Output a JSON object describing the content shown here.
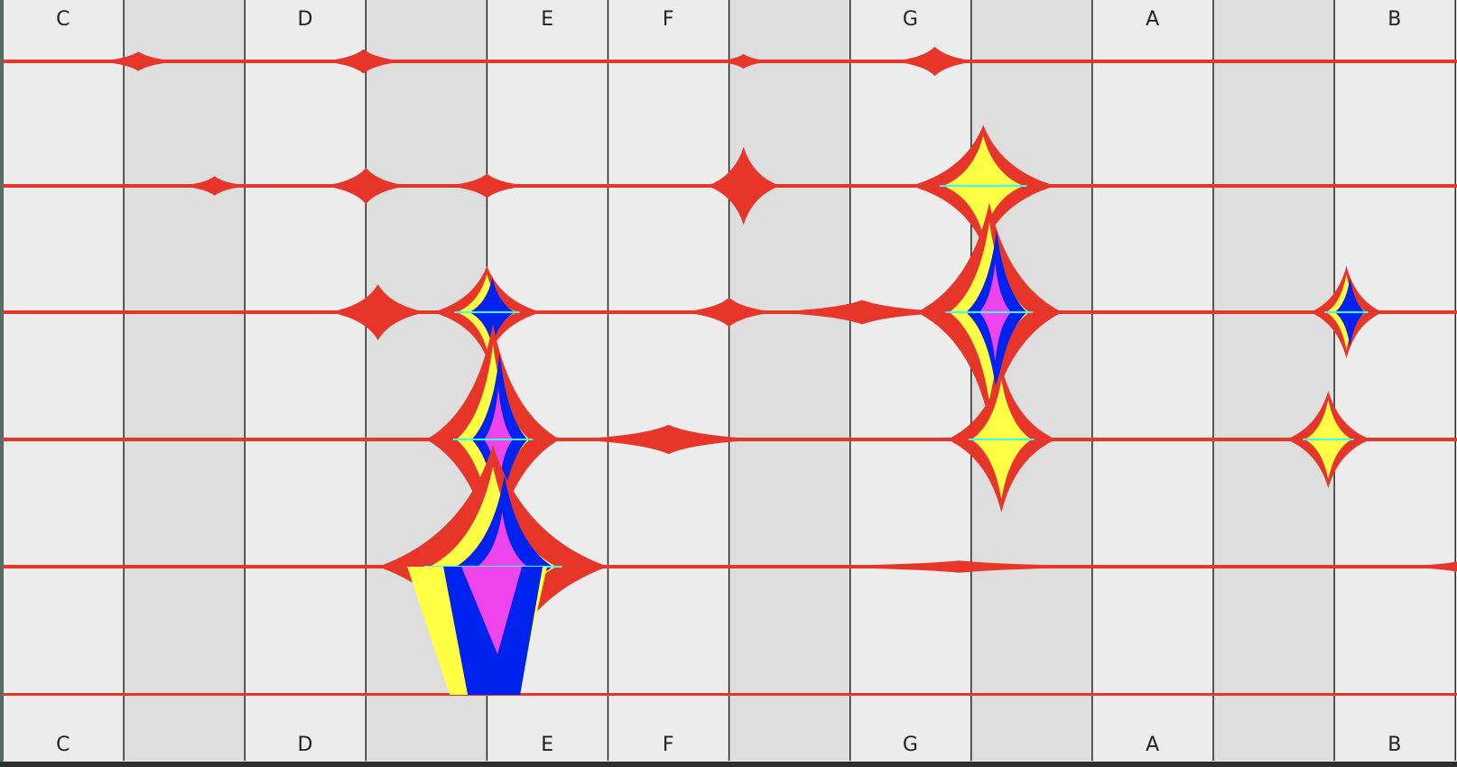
{
  "note_labels_top": [
    {
      "name": "C",
      "key": 0
    },
    {
      "name": "D",
      "key": 2
    },
    {
      "name": "E",
      "key": 4
    },
    {
      "name": "F",
      "key": 5
    },
    {
      "name": "G",
      "key": 7
    },
    {
      "name": "A",
      "key": 9
    },
    {
      "name": "B",
      "key": 11
    }
  ],
  "note_labels_bottom": [
    {
      "name": "C",
      "key": 0
    },
    {
      "name": "D",
      "key": 2
    },
    {
      "name": "E",
      "key": 4
    },
    {
      "name": "F",
      "key": 5
    },
    {
      "name": "G",
      "key": 7
    },
    {
      "name": "A",
      "key": 9
    },
    {
      "name": "B",
      "key": 11
    }
  ],
  "keys": [
    {
      "index": 0,
      "type": "white"
    },
    {
      "index": 1,
      "type": "black"
    },
    {
      "index": 2,
      "type": "white"
    },
    {
      "index": 3,
      "type": "black"
    },
    {
      "index": 4,
      "type": "white"
    },
    {
      "index": 5,
      "type": "white"
    },
    {
      "index": 6,
      "type": "black"
    },
    {
      "index": 7,
      "type": "white"
    },
    {
      "index": 8,
      "type": "black"
    },
    {
      "index": 9,
      "type": "white"
    },
    {
      "index": 10,
      "type": "black"
    },
    {
      "index": 11,
      "type": "white"
    }
  ],
  "octave_rows": 5,
  "colors": {
    "background": "#ececec",
    "black_key_column": "#dedede",
    "grid_line": "#1a1a1a",
    "baseline": "#e8352a",
    "level_1": "#e8352a",
    "level_2": "#ffff44",
    "level_3": "#0022ee",
    "level_4": "#ee44ee",
    "accent_cyan": "#33ffff",
    "accent_green": "#88ff44"
  },
  "peaks": [
    {
      "row": 0,
      "pos": 0.62,
      "level": 1,
      "amp": 0.08,
      "spread": 0.35
    },
    {
      "row": 0,
      "pos": 2.48,
      "level": 1,
      "amp": 0.1,
      "spread": 0.35
    },
    {
      "row": 0,
      "pos": 5.62,
      "level": 1,
      "amp": 0.06,
      "spread": 0.25
    },
    {
      "row": 0,
      "pos": 7.2,
      "level": 1,
      "amp": 0.12,
      "spread": 0.35
    },
    {
      "row": 1,
      "pos": 1.25,
      "level": 1,
      "amp": 0.08,
      "spread": 0.3
    },
    {
      "row": 1,
      "pos": 2.5,
      "level": 1,
      "amp": 0.15,
      "spread": 0.35
    },
    {
      "row": 1,
      "pos": 3.5,
      "level": 1,
      "amp": 0.1,
      "spread": 0.35
    },
    {
      "row": 1,
      "pos": 5.62,
      "level": 1,
      "amp": 0.32,
      "spread": 0.3
    },
    {
      "row": 1,
      "pos": 7.6,
      "level": 2,
      "amp": 0.5,
      "spread": 0.6
    },
    {
      "row": 2,
      "pos": 2.6,
      "level": 1,
      "amp": 0.23,
      "spread": 0.4
    },
    {
      "row": 2,
      "pos": 3.5,
      "level": 3,
      "amp": 0.38,
      "spread": 0.45
    },
    {
      "row": 2,
      "pos": 5.5,
      "level": 1,
      "amp": 0.12,
      "spread": 0.4
    },
    {
      "row": 2,
      "pos": 6.6,
      "level": 1,
      "amp": 0.1,
      "spread": 0.8
    },
    {
      "row": 2,
      "pos": 7.65,
      "level": 4,
      "amp": 0.9,
      "spread": 0.6
    },
    {
      "row": 2,
      "pos": 10.6,
      "level": 3,
      "amp": 0.38,
      "spread": 0.3
    },
    {
      "row": 3,
      "pos": 3.55,
      "level": 4,
      "amp": 0.95,
      "spread": 0.55
    },
    {
      "row": 3,
      "pos": 5.0,
      "level": 1,
      "amp": 0.12,
      "spread": 0.8
    },
    {
      "row": 3,
      "pos": 7.75,
      "level": 2,
      "amp": 0.6,
      "spread": 0.45
    },
    {
      "row": 3,
      "pos": 10.45,
      "level": 2,
      "amp": 0.4,
      "spread": 0.35
    },
    {
      "row": 4,
      "pos": 3.55,
      "level": 4,
      "amp": 1.0,
      "spread": 0.95
    },
    {
      "row": 4,
      "pos": 7.4,
      "level": 1,
      "amp": 0.05,
      "spread": 1.5
    },
    {
      "row": 4,
      "pos": 11.5,
      "level": 1,
      "amp": 0.04,
      "spread": 0.6
    }
  ]
}
